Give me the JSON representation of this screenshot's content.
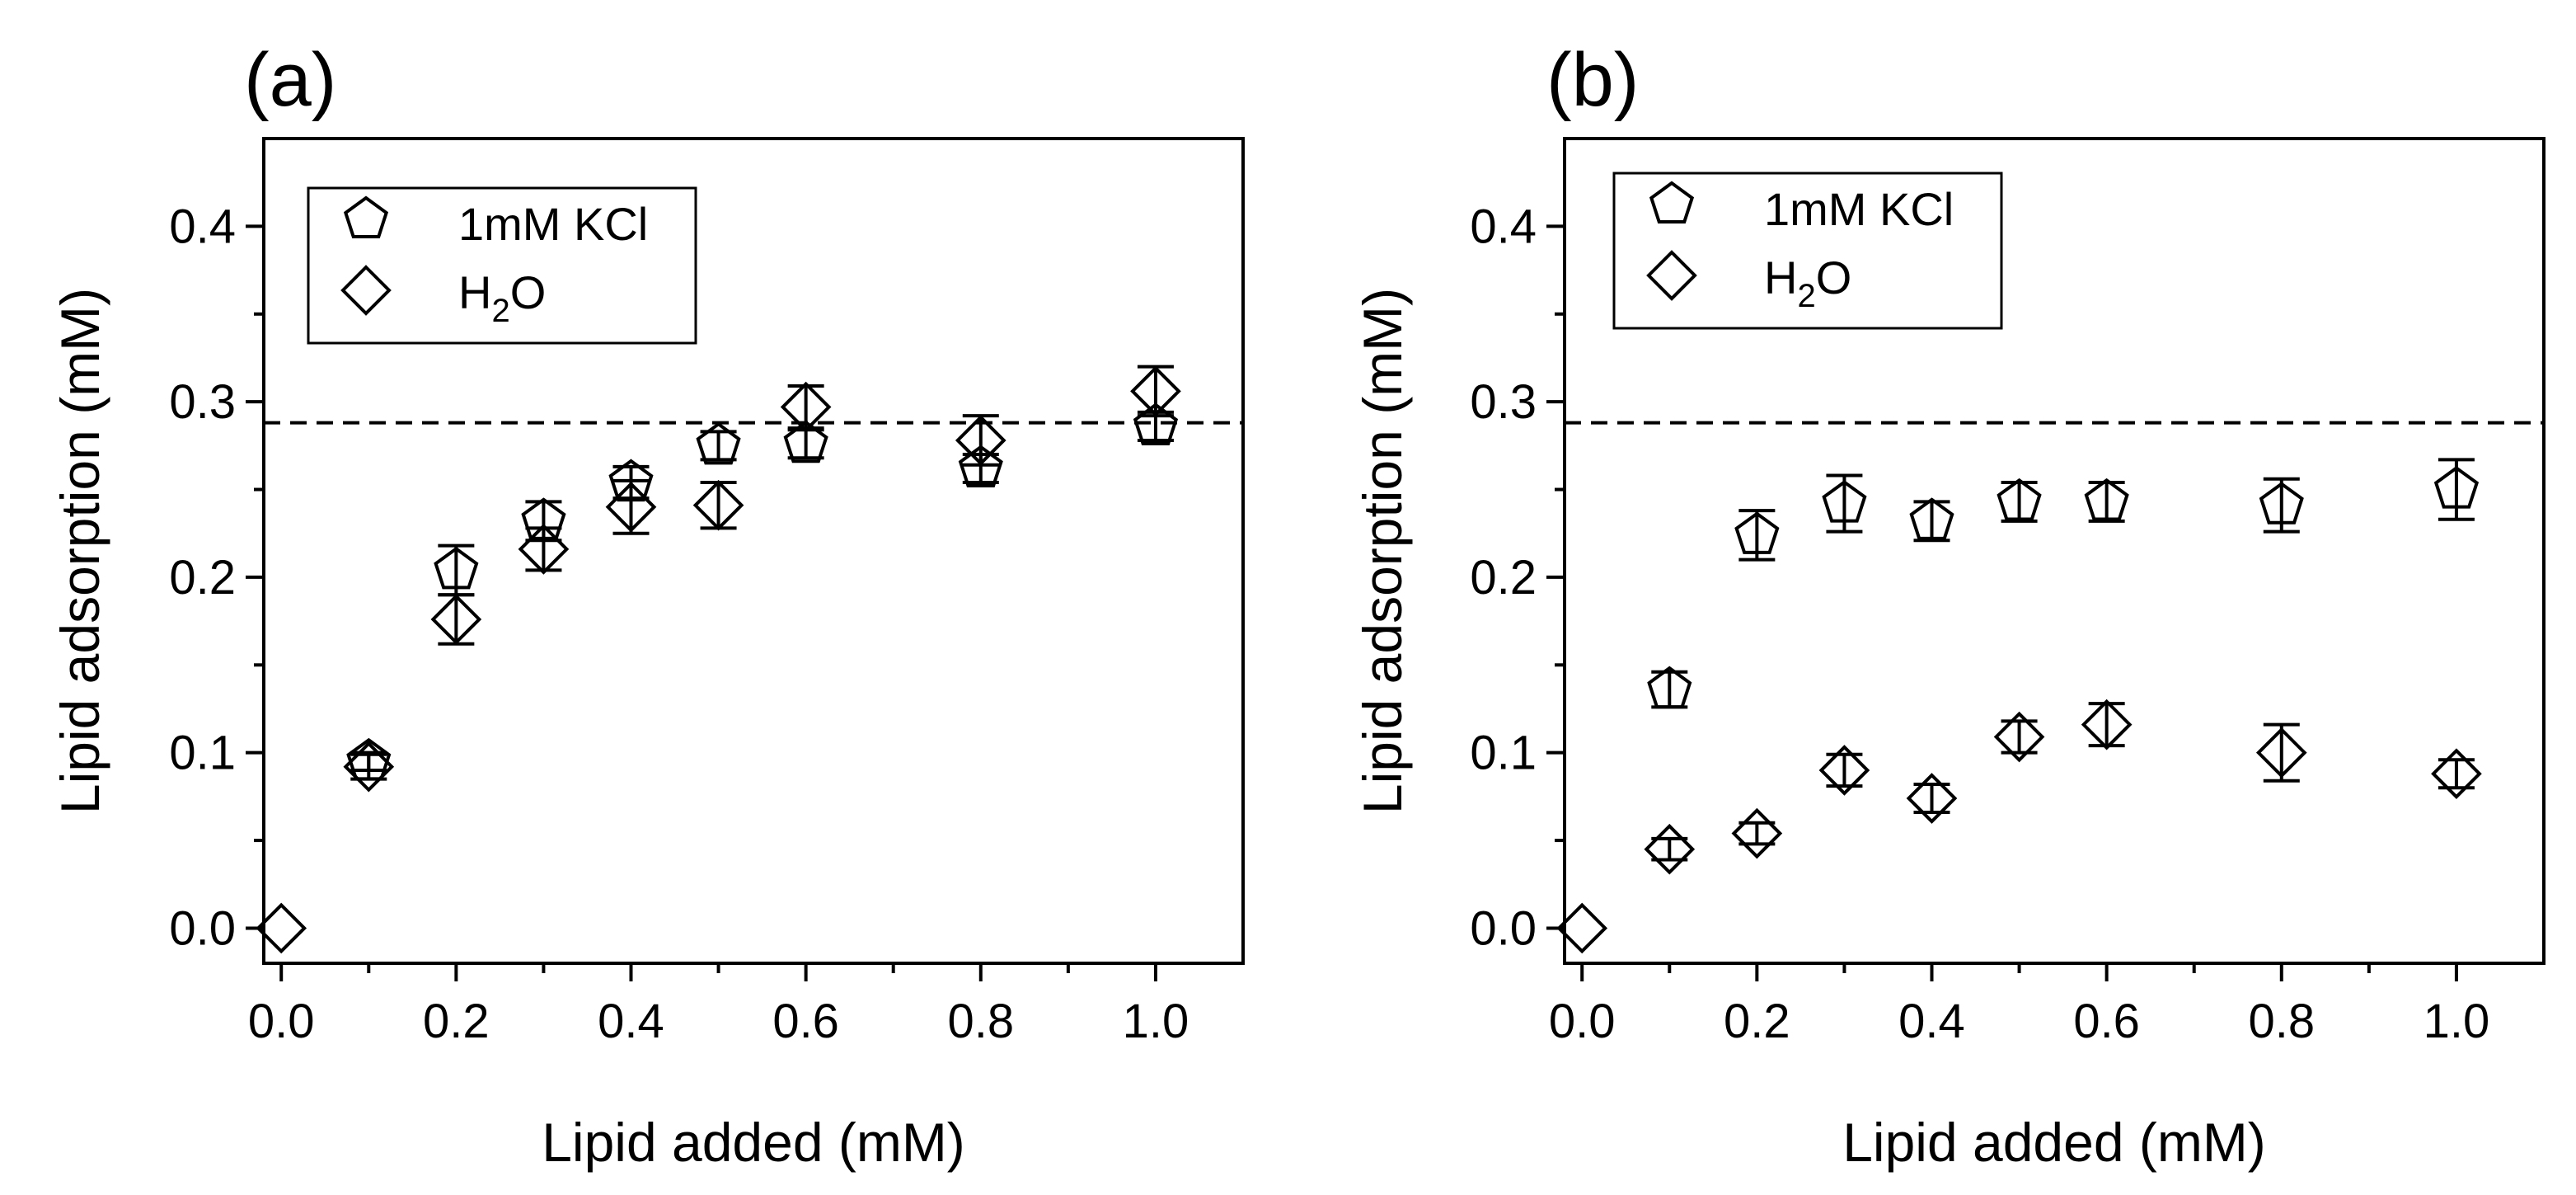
{
  "chart_data": [
    {
      "type": "scatter",
      "panel_label": "(a)",
      "xlabel": "Lipid added (mM)",
      "ylabel": "Lipid adsorption (mM)",
      "xlim": [
        -0.02,
        1.1
      ],
      "ylim": [
        -0.02,
        0.45
      ],
      "xticks": [
        "0.0",
        "0.2",
        "0.4",
        "0.6",
        "0.8",
        "1.0"
      ],
      "yticks": [
        "0.0",
        "0.1",
        "0.2",
        "0.3",
        "0.4"
      ],
      "reference_line": 0.288,
      "legend": {
        "placement": "top-left",
        "entries": [
          {
            "marker": "pentagon",
            "label": "1mM KCl"
          },
          {
            "marker": "diamond",
            "label_main": "H",
            "label_sub": "2",
            "label_tail": "O"
          }
        ]
      },
      "series": [
        {
          "name": "1mM KCl",
          "marker": "pentagon",
          "x": [
            0.1,
            0.2,
            0.3,
            0.4,
            0.5,
            0.6,
            0.8,
            1.0
          ],
          "y": [
            0.095,
            0.204,
            0.232,
            0.254,
            0.275,
            0.276,
            0.262,
            0.286
          ],
          "err": [
            0.005,
            0.014,
            0.011,
            0.009,
            0.008,
            0.008,
            0.008,
            0.008
          ]
        },
        {
          "name": "H2O",
          "marker": "diamond",
          "x": [
            0.0,
            0.1,
            0.2,
            0.3,
            0.4,
            0.5,
            0.6,
            0.8,
            1.0
          ],
          "y": [
            0.0,
            0.092,
            0.176,
            0.216,
            0.24,
            0.241,
            0.297,
            0.278,
            0.306
          ],
          "err": [
            0.0,
            0.007,
            0.014,
            0.012,
            0.015,
            0.013,
            0.012,
            0.014,
            0.014
          ]
        }
      ]
    },
    {
      "type": "scatter",
      "panel_label": "(b)",
      "xlabel": "Lipid added (mM)",
      "ylabel": "Lipid adsorption (mM)",
      "xlim": [
        -0.02,
        1.1
      ],
      "ylim": [
        -0.02,
        0.45
      ],
      "xticks": [
        "0.0",
        "0.2",
        "0.4",
        "0.6",
        "0.8",
        "1.0"
      ],
      "yticks": [
        "0.0",
        "0.1",
        "0.2",
        "0.3",
        "0.4"
      ],
      "reference_line": 0.288,
      "legend": {
        "placement": "top-left",
        "entries": [
          {
            "marker": "pentagon",
            "label": "1mM KCl"
          },
          {
            "marker": "diamond",
            "label_main": "H",
            "label_sub": "2",
            "label_tail": "O"
          }
        ]
      },
      "series": [
        {
          "name": "1mM KCl",
          "marker": "pentagon",
          "x": [
            0.1,
            0.2,
            0.3,
            0.4,
            0.5,
            0.6,
            0.8,
            1.0
          ],
          "y": [
            0.136,
            0.224,
            0.242,
            0.232,
            0.243,
            0.243,
            0.241,
            0.25
          ],
          "err": [
            0.01,
            0.014,
            0.016,
            0.011,
            0.011,
            0.011,
            0.015,
            0.017
          ]
        },
        {
          "name": "H2O",
          "marker": "diamond",
          "x": [
            0.0,
            0.1,
            0.2,
            0.3,
            0.4,
            0.5,
            0.6,
            0.8,
            1.0
          ],
          "y": [
            0.0,
            0.045,
            0.054,
            0.09,
            0.074,
            0.109,
            0.116,
            0.1,
            0.088
          ],
          "err": [
            0.0,
            0.006,
            0.006,
            0.009,
            0.008,
            0.009,
            0.012,
            0.016,
            0.008
          ]
        }
      ]
    }
  ]
}
